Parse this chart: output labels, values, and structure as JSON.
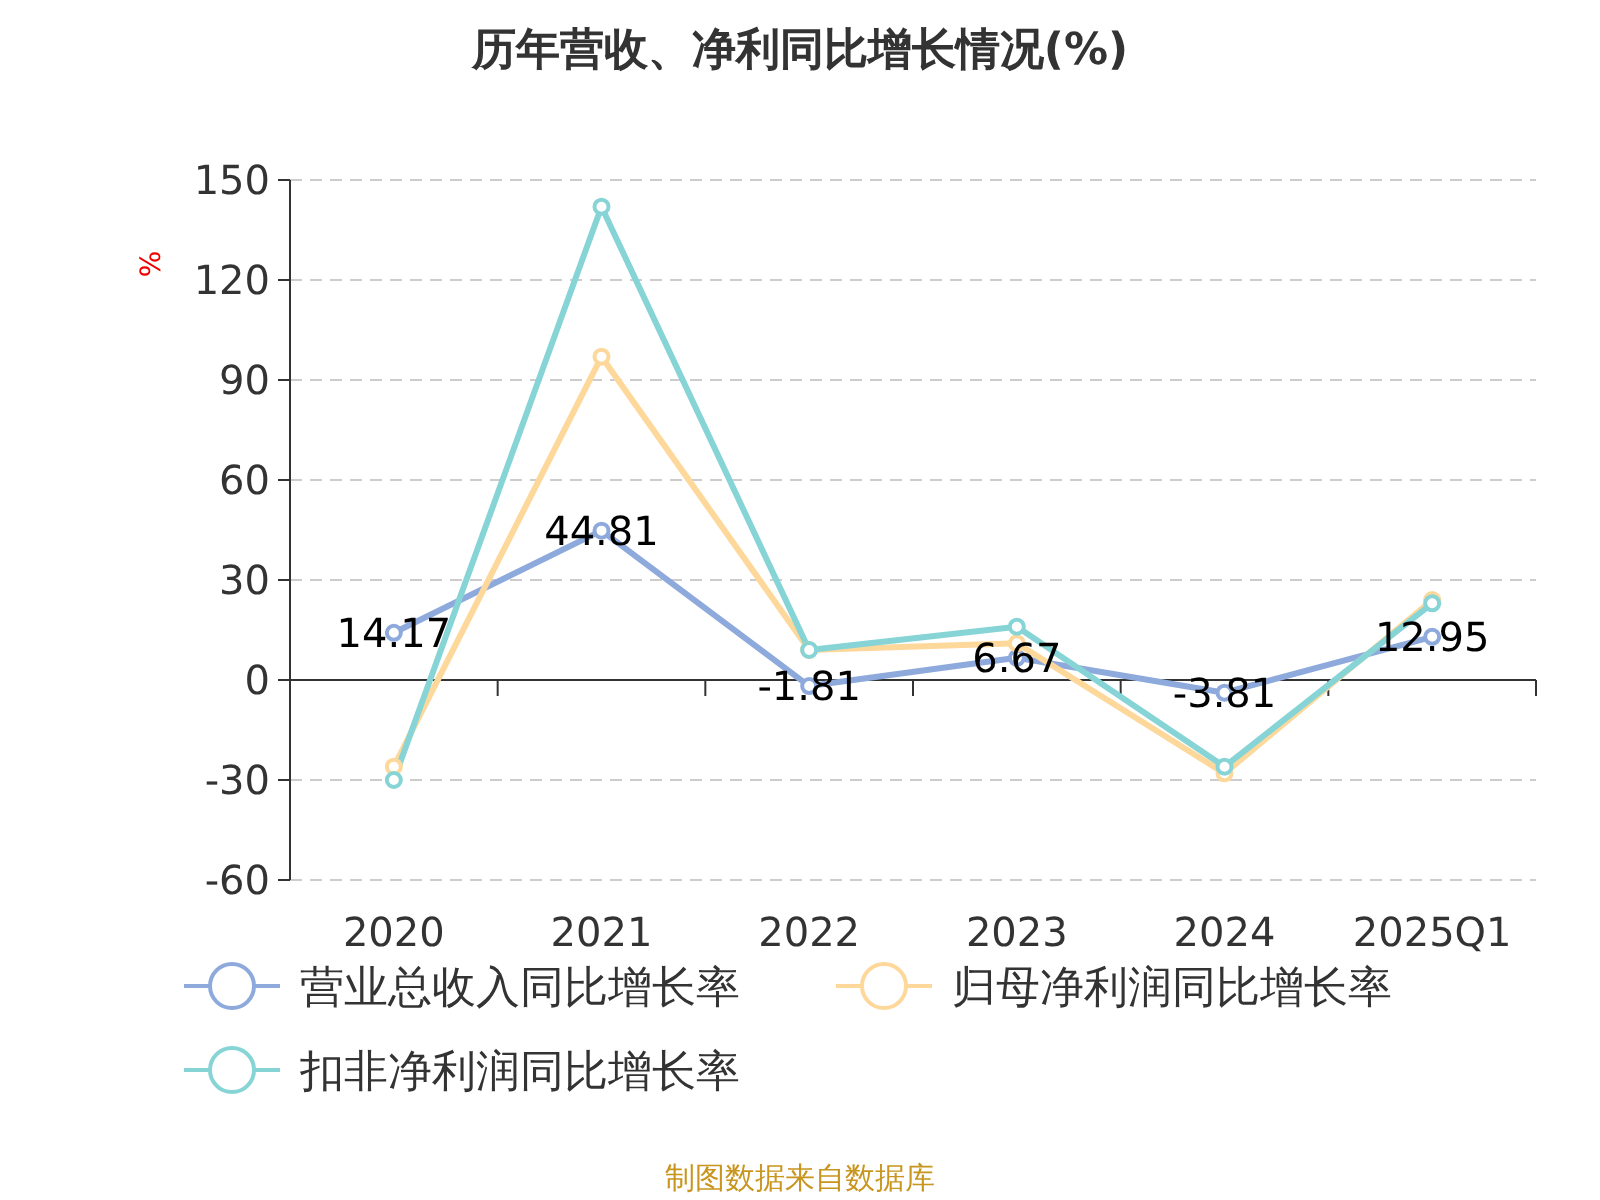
{
  "chart_data": {
    "type": "line",
    "title": "历年营收、净利同比增长情况(%)",
    "ylabel": "%",
    "categories": [
      "2020",
      "2021",
      "2022",
      "2023",
      "2024",
      "2025Q1"
    ],
    "series": [
      {
        "name": "营业总收入同比增长率",
        "color": "#8eaadc",
        "values": [
          14.17,
          44.81,
          -1.81,
          6.67,
          -3.81,
          12.95
        ],
        "value_labels": [
          "14.17",
          "44.81",
          "-1.81",
          "6.67",
          "-3.81",
          "12.95"
        ]
      },
      {
        "name": "归母净利润同比增长率",
        "color": "#fdd89a",
        "values": [
          -26,
          97,
          9,
          11,
          -28,
          24
        ]
      },
      {
        "name": "扣非净利润同比增长率",
        "color": "#86d4d6",
        "values": [
          -30,
          142,
          9,
          16,
          -26,
          23
        ]
      }
    ],
    "ylim": [
      -60,
      150
    ],
    "yticks": [
      -60,
      -30,
      0,
      30,
      60,
      90,
      120,
      150
    ],
    "grid": "y",
    "legend": "bottom",
    "marker": "circle",
    "line_style": "solid",
    "annotations": [
      "制图数据来自数据库"
    ]
  }
}
